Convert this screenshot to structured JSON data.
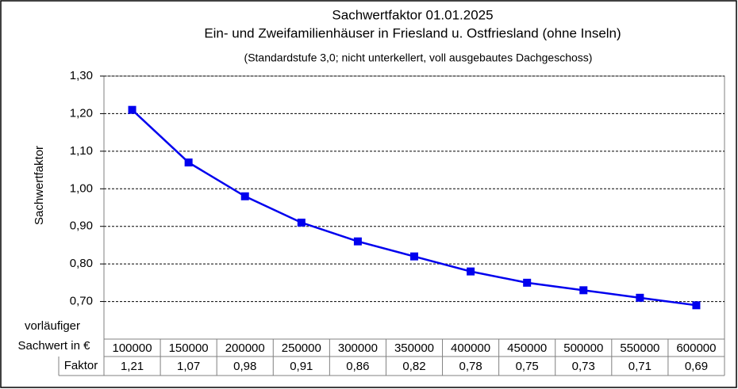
{
  "chart_data": {
    "type": "line",
    "title": "Sachwertfaktor 01.01.2025",
    "subtitle_1": "Ein- und Zweifamilienhäuser in Friesland u. Ostfriesland (ohne Inseln)",
    "subtitle_2": "(Standardstufe 3,0; nicht unterkellert,  voll ausgebautes  Dachgeschoss)",
    "y_label": "Sachwertfaktor",
    "table_header_1": "vorläufiger",
    "table_header_2": "Sachwert in €",
    "table_row_label": "Faktor",
    "categories": [
      100000,
      150000,
      200000,
      250000,
      300000,
      350000,
      400000,
      450000,
      500000,
      550000,
      600000
    ],
    "values": [
      1.21,
      1.07,
      0.98,
      0.91,
      0.86,
      0.82,
      0.78,
      0.75,
      0.73,
      0.71,
      0.69
    ],
    "value_labels": [
      "1,21",
      "1,07",
      "0,98",
      "0,91",
      "0,86",
      "0,82",
      "0,78",
      "0,75",
      "0,73",
      "0,71",
      "0,69"
    ],
    "color": "#0000ee",
    "ylim": [
      0.6,
      1.3
    ],
    "yticks": [
      {
        "value": 0.7,
        "label": "0,70"
      },
      {
        "value": 0.8,
        "label": "0,80"
      },
      {
        "value": 0.9,
        "label": "0,90"
      },
      {
        "value": 1.0,
        "label": "1,00"
      },
      {
        "value": 1.1,
        "label": "1,10"
      },
      {
        "value": 1.2,
        "label": "1,20"
      },
      {
        "value": 1.3,
        "label": "1,30"
      }
    ],
    "grid": true
  }
}
